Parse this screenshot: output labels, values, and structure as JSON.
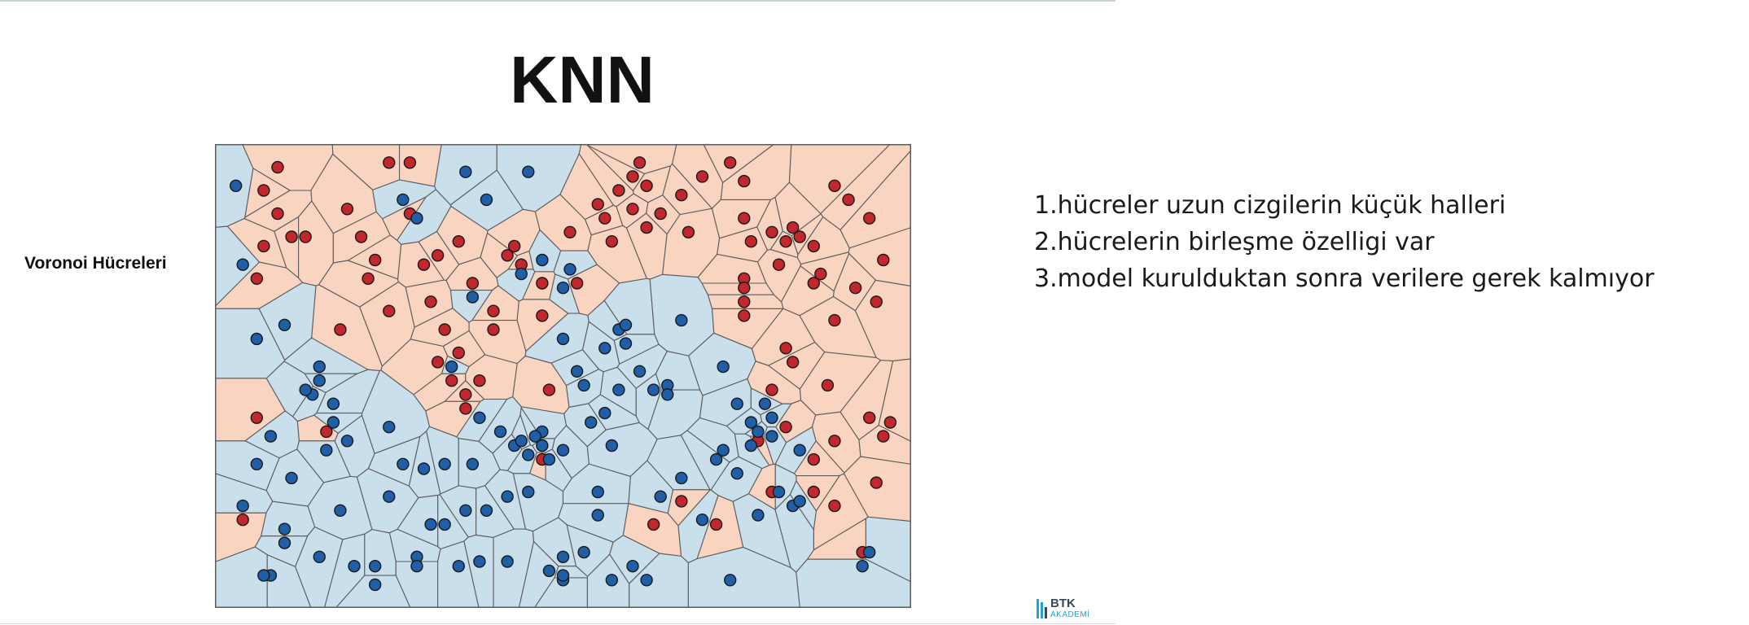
{
  "slide": {
    "title": "KNN",
    "side_label": "Voronoi Hücreleri",
    "notes": [
      "1.hücreler uzun cizgilerin küçük halleri",
      "2.hücrelerin birleşme özelligi var",
      "3.model kurulduktan sonra verilere gerek kalmıyor"
    ],
    "logo": {
      "name": "BTK",
      "sub": "AKADEMİ"
    }
  },
  "colors": {
    "red_cell": "#f9d4c0",
    "blue_cell": "#c9dfec",
    "red_point": "#c1272d",
    "blue_point": "#1f5fa8",
    "cell_border": "#5c5c5c",
    "logo_accent": "#1ea3d6"
  },
  "chart_data": {
    "type": "scatter",
    "title": "",
    "xlabel": "",
    "ylabel": "",
    "xlim": [
      0,
      100
    ],
    "ylim": [
      0,
      100
    ],
    "grid": false,
    "legend": "none",
    "series": [
      {
        "class": "red",
        "points": [
          [
            9,
            95
          ],
          [
            7,
            90
          ],
          [
            9,
            85
          ],
          [
            7,
            78
          ],
          [
            11,
            80
          ],
          [
            13,
            80
          ],
          [
            6,
            71
          ],
          [
            19,
            86
          ],
          [
            21,
            80
          ],
          [
            23,
            75
          ],
          [
            22,
            71
          ],
          [
            25,
            64
          ],
          [
            18,
            60
          ],
          [
            25,
            96
          ],
          [
            28,
            96
          ],
          [
            28,
            85
          ],
          [
            30,
            74
          ],
          [
            31,
            66
          ],
          [
            33,
            60
          ],
          [
            32,
            76
          ],
          [
            35,
            79
          ],
          [
            37,
            70
          ],
          [
            40,
            64
          ],
          [
            32,
            53
          ],
          [
            35,
            55
          ],
          [
            34,
            49
          ],
          [
            36,
            46
          ],
          [
            38,
            49
          ],
          [
            36,
            43
          ],
          [
            43,
            78
          ],
          [
            47,
            70
          ],
          [
            44,
            74
          ],
          [
            40,
            60
          ],
          [
            47,
            63
          ],
          [
            48,
            47
          ],
          [
            47,
            32
          ],
          [
            42,
            76
          ],
          [
            52,
            70
          ],
          [
            51,
            81
          ],
          [
            55,
            87
          ],
          [
            57,
            79
          ],
          [
            56,
            84
          ],
          [
            58,
            90
          ],
          [
            60,
            93
          ],
          [
            61,
            96
          ],
          [
            62,
            91
          ],
          [
            60,
            86
          ],
          [
            62,
            82
          ],
          [
            64,
            85
          ],
          [
            67,
            89
          ],
          [
            68,
            81
          ],
          [
            70,
            93
          ],
          [
            76,
            84
          ],
          [
            74,
            96
          ],
          [
            76,
            92
          ],
          [
            77,
            79
          ],
          [
            82,
            79
          ],
          [
            84,
            80
          ],
          [
            83,
            82
          ],
          [
            81,
            74
          ],
          [
            87,
            72
          ],
          [
            86,
            78
          ],
          [
            89,
            91
          ],
          [
            91,
            88
          ],
          [
            94,
            84
          ],
          [
            96,
            75
          ],
          [
            92,
            69
          ],
          [
            95,
            66
          ],
          [
            89,
            62
          ],
          [
            86,
            70
          ],
          [
            76,
            63
          ],
          [
            80,
            81
          ],
          [
            76,
            71
          ],
          [
            76,
            69
          ],
          [
            76,
            66
          ],
          [
            82,
            56
          ],
          [
            83,
            53
          ],
          [
            88,
            48
          ],
          [
            80,
            47
          ],
          [
            82,
            39
          ],
          [
            78,
            36
          ],
          [
            89,
            36
          ],
          [
            86,
            32
          ],
          [
            94,
            41
          ],
          [
            97,
            40
          ],
          [
            96,
            37
          ],
          [
            95,
            27
          ],
          [
            89,
            22
          ],
          [
            86,
            25
          ],
          [
            80,
            25
          ],
          [
            6,
            41
          ],
          [
            16,
            38
          ],
          [
            67,
            23
          ],
          [
            63,
            18
          ],
          [
            72,
            18
          ],
          [
            93,
            12
          ],
          [
            4,
            19
          ]
        ]
      },
      {
        "class": "blue",
        "points": [
          [
            3,
            91
          ],
          [
            4,
            74
          ],
          [
            6,
            58
          ],
          [
            10,
            61
          ],
          [
            15,
            52
          ],
          [
            14,
            46
          ],
          [
            15,
            49
          ],
          [
            17,
            44
          ],
          [
            13,
            47
          ],
          [
            17,
            40
          ],
          [
            16,
            34
          ],
          [
            19,
            36
          ],
          [
            8,
            37
          ],
          [
            6,
            31
          ],
          [
            11,
            28
          ],
          [
            4,
            22
          ],
          [
            10,
            17
          ],
          [
            10,
            14
          ],
          [
            15,
            11
          ],
          [
            20,
            9
          ],
          [
            23,
            9
          ],
          [
            23,
            5
          ],
          [
            8,
            7
          ],
          [
            7,
            7
          ],
          [
            18,
            21
          ],
          [
            25,
            39
          ],
          [
            25,
            24
          ],
          [
            27,
            31
          ],
          [
            30,
            30
          ],
          [
            33,
            31
          ],
          [
            33,
            18
          ],
          [
            31,
            18
          ],
          [
            29,
            11
          ],
          [
            37,
            31
          ],
          [
            34,
            52
          ],
          [
            38,
            41
          ],
          [
            37,
            67
          ],
          [
            44,
            72
          ],
          [
            47,
            75
          ],
          [
            51,
            73
          ],
          [
            29,
            84
          ],
          [
            27,
            88
          ],
          [
            36,
            94
          ],
          [
            39,
            88
          ],
          [
            45,
            94
          ],
          [
            50,
            69
          ],
          [
            58,
            60
          ],
          [
            59,
            57
          ],
          [
            59,
            61
          ],
          [
            56,
            56
          ],
          [
            50,
            58
          ],
          [
            67,
            62
          ],
          [
            61,
            51
          ],
          [
            53,
            48
          ],
          [
            52,
            51
          ],
          [
            58,
            47
          ],
          [
            63,
            47
          ],
          [
            65,
            48
          ],
          [
            65,
            46
          ],
          [
            73,
            52
          ],
          [
            75,
            44
          ],
          [
            79,
            44
          ],
          [
            80,
            41
          ],
          [
            77,
            40
          ],
          [
            78,
            38
          ],
          [
            80,
            37
          ],
          [
            77,
            35
          ],
          [
            72,
            32
          ],
          [
            73,
            34
          ],
          [
            75,
            29
          ],
          [
            81,
            25
          ],
          [
            83,
            22
          ],
          [
            84,
            23
          ],
          [
            78,
            20
          ],
          [
            70,
            19
          ],
          [
            67,
            28
          ],
          [
            56,
            42
          ],
          [
            54,
            40
          ],
          [
            57,
            35
          ],
          [
            50,
            34
          ],
          [
            48,
            32
          ],
          [
            45,
            25
          ],
          [
            42,
            24
          ],
          [
            47,
            38
          ],
          [
            43,
            35
          ],
          [
            41,
            38
          ],
          [
            46,
            37
          ],
          [
            44,
            36
          ],
          [
            47,
            35
          ],
          [
            45,
            33
          ],
          [
            36,
            21
          ],
          [
            29,
            9
          ],
          [
            35,
            9
          ],
          [
            38,
            10
          ],
          [
            39,
            21
          ],
          [
            42,
            10
          ],
          [
            50,
            11
          ],
          [
            53,
            12
          ],
          [
            48,
            8
          ],
          [
            50,
            6
          ],
          [
            50,
            7
          ],
          [
            57,
            6
          ],
          [
            62,
            6
          ],
          [
            74,
            6
          ],
          [
            93,
            9
          ],
          [
            94,
            12
          ],
          [
            60,
            9
          ],
          [
            64,
            24
          ],
          [
            55,
            25
          ],
          [
            55,
            20
          ],
          [
            84,
            34
          ]
        ]
      }
    ]
  }
}
